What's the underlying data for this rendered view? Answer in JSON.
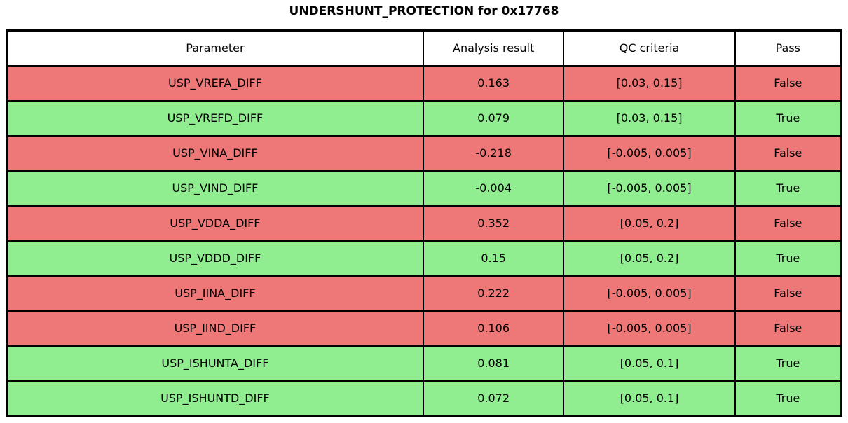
{
  "title": "UNDERSHUNT_PROTECTION for 0x17768",
  "colors": {
    "fail_row_bg": "#ee7777",
    "pass_row_bg": "#90ee90",
    "header_bg": "#ffffff",
    "border": "#000000",
    "text": "#000000"
  },
  "chart_data": {
    "type": "table",
    "title": "UNDERSHUNT_PROTECTION for 0x17768",
    "columns": [
      "Parameter",
      "Analysis result",
      "QC criteria",
      "Pass"
    ],
    "rows": [
      {
        "parameter": "USP_VREFA_DIFF",
        "analysis_result": "0.163",
        "qc_criteria": "[0.03, 0.15]",
        "pass": "False"
      },
      {
        "parameter": "USP_VREFD_DIFF",
        "analysis_result": "0.079",
        "qc_criteria": "[0.03, 0.15]",
        "pass": "True"
      },
      {
        "parameter": "USP_VINA_DIFF",
        "analysis_result": "-0.218",
        "qc_criteria": "[-0.005, 0.005]",
        "pass": "False"
      },
      {
        "parameter": "USP_VIND_DIFF",
        "analysis_result": "-0.004",
        "qc_criteria": "[-0.005, 0.005]",
        "pass": "True"
      },
      {
        "parameter": "USP_VDDA_DIFF",
        "analysis_result": "0.352",
        "qc_criteria": "[0.05, 0.2]",
        "pass": "False"
      },
      {
        "parameter": "USP_VDDD_DIFF",
        "analysis_result": "0.15",
        "qc_criteria": "[0.05, 0.2]",
        "pass": "True"
      },
      {
        "parameter": "USP_IINA_DIFF",
        "analysis_result": "0.222",
        "qc_criteria": "[-0.005, 0.005]",
        "pass": "False"
      },
      {
        "parameter": "USP_IIND_DIFF",
        "analysis_result": "0.106",
        "qc_criteria": "[-0.005, 0.005]",
        "pass": "False"
      },
      {
        "parameter": "USP_ISHUNTA_DIFF",
        "analysis_result": "0.081",
        "qc_criteria": "[0.05, 0.1]",
        "pass": "True"
      },
      {
        "parameter": "USP_ISHUNTD_DIFF",
        "analysis_result": "0.072",
        "qc_criteria": "[0.05, 0.1]",
        "pass": "True"
      }
    ]
  }
}
